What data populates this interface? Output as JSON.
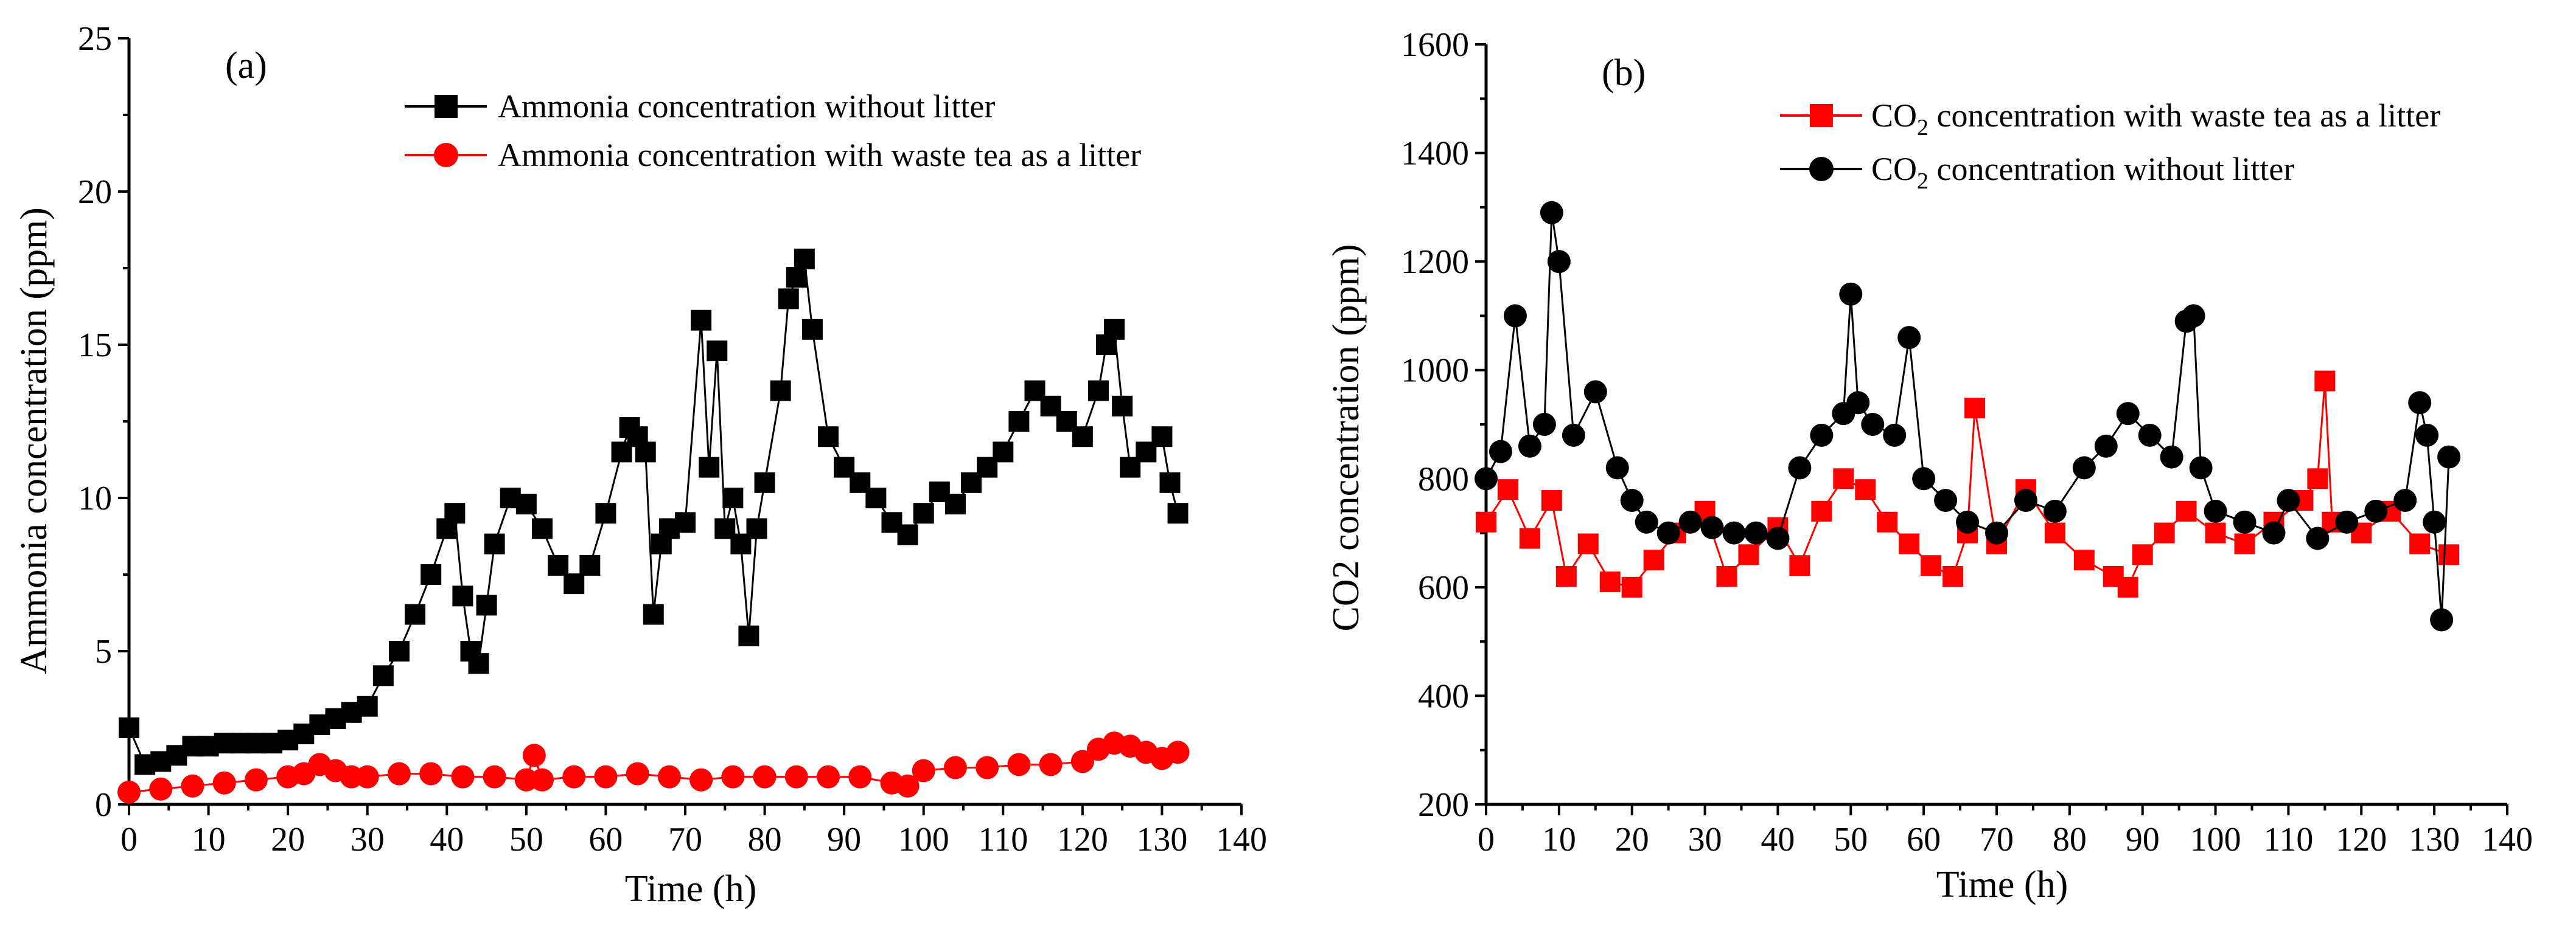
{
  "colors": {
    "black_series": "#000000",
    "red_series": "#ff0000"
  },
  "chart_data": [
    {
      "type": "line",
      "panel_label": "(a)",
      "xlabel": "Time (h)",
      "ylabel": "Ammonia concentration (ppm)",
      "xlim": [
        0,
        140
      ],
      "ylim": [
        0,
        25
      ],
      "x_ticks": [
        "0",
        "10",
        "20",
        "30",
        "40",
        "50",
        "60",
        "70",
        "80",
        "90",
        "100",
        "110",
        "120",
        "130",
        "140"
      ],
      "y_ticks": [
        "0",
        "5",
        "10",
        "15",
        "20",
        "25"
      ],
      "legend_position": "top-center",
      "series": [
        {
          "name": "Ammonia concentration without litter",
          "marker": "square",
          "color": "#000000",
          "x": [
            0,
            2,
            4,
            6,
            8,
            10,
            12,
            14,
            16,
            18,
            20,
            22,
            24,
            26,
            28,
            30,
            32,
            34,
            36,
            38,
            40,
            41,
            42,
            43,
            44,
            45,
            46,
            48,
            50,
            52,
            54,
            56,
            58,
            60,
            62,
            63,
            64,
            65,
            66,
            67,
            68,
            70,
            72,
            73,
            74,
            75,
            76,
            77,
            78,
            79,
            80,
            82,
            83,
            84,
            85,
            86,
            88,
            90,
            92,
            94,
            96,
            98,
            100,
            102,
            104,
            106,
            108,
            110,
            112,
            114,
            116,
            118,
            120,
            122,
            123,
            124,
            125,
            126,
            128,
            130,
            131,
            132
          ],
          "values": [
            2.5,
            1.3,
            1.4,
            1.6,
            1.9,
            1.9,
            2.0,
            2.0,
            2.0,
            2.0,
            2.1,
            2.3,
            2.6,
            2.8,
            3.0,
            3.2,
            4.2,
            5.0,
            6.2,
            7.5,
            9.0,
            9.5,
            6.8,
            5.0,
            4.6,
            6.5,
            8.5,
            10.0,
            9.8,
            9.0,
            7.8,
            7.2,
            7.8,
            9.5,
            11.5,
            12.3,
            12.0,
            11.5,
            6.2,
            8.5,
            9.0,
            9.2,
            15.8,
            11.0,
            14.8,
            9.0,
            10.0,
            8.5,
            5.5,
            9.0,
            10.5,
            13.5,
            16.5,
            17.2,
            17.8,
            15.5,
            12.0,
            11.0,
            10.5,
            10.0,
            9.2,
            8.8,
            9.5,
            10.2,
            9.8,
            10.5,
            11.0,
            11.5,
            12.5,
            13.5,
            13.0,
            12.5,
            12.0,
            13.5,
            15.0,
            15.5,
            13.0,
            11.0,
            11.5,
            12.0,
            10.5,
            9.5
          ]
        },
        {
          "name": "Ammonia concentration with waste tea as a litter",
          "marker": "circle",
          "color": "#ff0000",
          "x": [
            0,
            4,
            8,
            12,
            16,
            20,
            22,
            24,
            26,
            28,
            30,
            34,
            38,
            42,
            46,
            50,
            51,
            52,
            56,
            60,
            64,
            68,
            72,
            76,
            80,
            84,
            88,
            92,
            96,
            98,
            100,
            104,
            108,
            112,
            116,
            120,
            122,
            124,
            126,
            128,
            130,
            132
          ],
          "values": [
            0.4,
            0.5,
            0.6,
            0.7,
            0.8,
            0.9,
            1.0,
            1.3,
            1.1,
            0.9,
            0.9,
            1.0,
            1.0,
            0.9,
            0.9,
            0.8,
            1.6,
            0.8,
            0.9,
            0.9,
            1.0,
            0.9,
            0.8,
            0.9,
            0.9,
            0.9,
            0.9,
            0.9,
            0.7,
            0.6,
            1.1,
            1.2,
            1.2,
            1.3,
            1.3,
            1.4,
            1.8,
            2.0,
            1.9,
            1.7,
            1.5,
            1.7
          ]
        }
      ]
    },
    {
      "type": "line",
      "panel_label": "(b)",
      "xlabel": "Time (h)",
      "ylabel": "CO2 concentration (ppm)",
      "xlim": [
        0,
        140
      ],
      "ylim": [
        200,
        1600
      ],
      "x_ticks": [
        "0",
        "10",
        "20",
        "30",
        "40",
        "50",
        "60",
        "70",
        "80",
        "90",
        "100",
        "110",
        "120",
        "130",
        "140"
      ],
      "y_ticks": [
        "200",
        "400",
        "600",
        "800",
        "1000",
        "1200",
        "1400",
        "1600"
      ],
      "legend_position": "top-right",
      "series": [
        {
          "name": "CO2 concentration with waste tea as a litter",
          "legend_prefix": "CO",
          "legend_sub": "2",
          "legend_suffix": " concentration with waste tea as a litter",
          "marker": "square",
          "color": "#ff0000",
          "x": [
            0,
            3,
            6,
            9,
            11,
            14,
            17,
            20,
            23,
            26,
            30,
            33,
            36,
            40,
            43,
            46,
            49,
            52,
            55,
            58,
            61,
            64,
            66,
            67,
            70,
            74,
            78,
            82,
            86,
            88,
            90,
            93,
            96,
            100,
            104,
            108,
            112,
            114,
            115,
            116,
            120,
            124,
            128,
            132
          ],
          "values": [
            720,
            780,
            690,
            760,
            620,
            680,
            610,
            600,
            650,
            700,
            740,
            620,
            660,
            710,
            640,
            740,
            800,
            780,
            720,
            680,
            640,
            620,
            700,
            930,
            680,
            780,
            700,
            650,
            620,
            600,
            660,
            700,
            740,
            700,
            680,
            720,
            760,
            800,
            980,
            720,
            700,
            740,
            680,
            660
          ]
        },
        {
          "name": "CO2 concentration without litter",
          "legend_prefix": "CO",
          "legend_sub": "2",
          "legend_suffix": " concentration without litter",
          "marker": "circle",
          "color": "#000000",
          "x": [
            0,
            2,
            4,
            6,
            8,
            9,
            10,
            12,
            15,
            18,
            20,
            22,
            25,
            28,
            31,
            34,
            37,
            40,
            43,
            46,
            49,
            50,
            51,
            53,
            56,
            58,
            60,
            63,
            66,
            70,
            74,
            78,
            82,
            85,
            88,
            91,
            94,
            96,
            97,
            98,
            100,
            104,
            108,
            110,
            114,
            118,
            122,
            126,
            128,
            129,
            130,
            131,
            132
          ],
          "values": [
            800,
            850,
            1100,
            860,
            900,
            1290,
            1200,
            880,
            960,
            820,
            760,
            720,
            700,
            720,
            710,
            700,
            700,
            690,
            820,
            880,
            920,
            1140,
            940,
            900,
            880,
            1060,
            800,
            760,
            720,
            700,
            760,
            740,
            820,
            860,
            920,
            880,
            840,
            1090,
            1100,
            820,
            740,
            720,
            700,
            760,
            690,
            720,
            740,
            760,
            940,
            880,
            720,
            540,
            840
          ]
        }
      ]
    }
  ]
}
